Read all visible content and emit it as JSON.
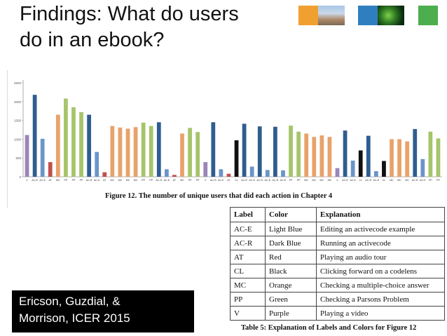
{
  "slide": {
    "title_line1": "Findings: What do users",
    "title_line2": "do in an ebook?",
    "citation_line1": "Ericson, Guzdial, &",
    "citation_line2": "Morrison, ICER 2015"
  },
  "figure": {
    "caption": "Figure 12.  The number of unique users that did each action in Chapter 4"
  },
  "table": {
    "headers": [
      "Label",
      "Color",
      "Explanation"
    ],
    "rows": [
      [
        "AC-E",
        "Light Blue",
        "Editing an activecode example"
      ],
      [
        "AC-R",
        "Dark Blue",
        "Running an activecode"
      ],
      [
        "AT",
        "Red",
        "Playing an audio tour"
      ],
      [
        "CL",
        "Black",
        "Clicking forward on a codelens"
      ],
      [
        "MC",
        "Orange",
        "Checking a multiple-choice answer"
      ],
      [
        "PP",
        "Green",
        "Checking a Parsons Problem"
      ],
      [
        "V",
        "Purple",
        "Playing a video"
      ]
    ],
    "caption": "Table 5: Explanation of Labels and Colors for Figure 12"
  },
  "colors": {
    "V": "#9a86b8",
    "AC-R": "#2f5d8f",
    "AC-E": "#6b95c9",
    "AT": "#c0504d",
    "MC": "#e8a26a",
    "PP": "#a6c46a",
    "CL": "#111111",
    "thumb_orange": "#f0a030",
    "thumb_blue": "#2f7fc0",
    "thumb_green": "#4cae4c"
  },
  "chart_data": {
    "type": "bar",
    "title": "",
    "xlabel": "",
    "ylabel": "",
    "ylim": [
      0,
      2500
    ],
    "yticks": [
      0,
      500,
      1000,
      1500,
      2000,
      2500
    ],
    "grid": false,
    "bars": [
      {
        "label": "V",
        "cat": "V",
        "value": 1110
      },
      {
        "label": "AC-R",
        "cat": "AC-R",
        "value": 2180
      },
      {
        "label": "AC-E",
        "cat": "AC-E",
        "value": 1010
      },
      {
        "label": "AT",
        "cat": "AT",
        "value": 390
      },
      {
        "label": "MC",
        "cat": "MC",
        "value": 1650
      },
      {
        "label": "PP",
        "cat": "PP",
        "value": 2080
      },
      {
        "label": "PP",
        "cat": "PP",
        "value": 1850
      },
      {
        "label": "PP",
        "cat": "PP",
        "value": 1720
      },
      {
        "label": "AC-R",
        "cat": "AC-R",
        "value": 1650
      },
      {
        "label": "AC-E",
        "cat": "AC-E",
        "value": 660
      },
      {
        "label": "AT",
        "cat": "AT",
        "value": 120
      },
      {
        "label": "MC",
        "cat": "MC",
        "value": 1350
      },
      {
        "label": "MC",
        "cat": "MC",
        "value": 1310
      },
      {
        "label": "MC",
        "cat": "MC",
        "value": 1280
      },
      {
        "label": "MC",
        "cat": "MC",
        "value": 1320
      },
      {
        "label": "PP",
        "cat": "PP",
        "value": 1440
      },
      {
        "label": "PP",
        "cat": "PP",
        "value": 1350
      },
      {
        "label": "AC-R",
        "cat": "AC-R",
        "value": 1450
      },
      {
        "label": "AC-E",
        "cat": "AC-E",
        "value": 200
      },
      {
        "label": "AT",
        "cat": "AT",
        "value": 50
      },
      {
        "label": "MC",
        "cat": "MC",
        "value": 1150
      },
      {
        "label": "PP",
        "cat": "PP",
        "value": 1300
      },
      {
        "label": "PP",
        "cat": "PP",
        "value": 1190
      },
      {
        "label": "V",
        "cat": "V",
        "value": 390
      },
      {
        "label": "AC-R",
        "cat": "AC-R",
        "value": 1450
      },
      {
        "label": "AC-E",
        "cat": "AC-E",
        "value": 200
      },
      {
        "label": "AT",
        "cat": "AT",
        "value": 80
      },
      {
        "label": "CL",
        "cat": "CL",
        "value": 970
      },
      {
        "label": "AC-R",
        "cat": "AC-R",
        "value": 1410
      },
      {
        "label": "AC-E",
        "cat": "AC-E",
        "value": 270
      },
      {
        "label": "AC-R",
        "cat": "AC-R",
        "value": 1340
      },
      {
        "label": "AC-E",
        "cat": "AC-E",
        "value": 180
      },
      {
        "label": "AC-R",
        "cat": "AC-R",
        "value": 1330
      },
      {
        "label": "AC-E",
        "cat": "AC-E",
        "value": 170
      },
      {
        "label": "PP",
        "cat": "PP",
        "value": 1360
      },
      {
        "label": "PP",
        "cat": "PP",
        "value": 1200
      },
      {
        "label": "MC",
        "cat": "MC",
        "value": 1150
      },
      {
        "label": "MC",
        "cat": "MC",
        "value": 1060
      },
      {
        "label": "MC",
        "cat": "MC",
        "value": 1100
      },
      {
        "label": "MC",
        "cat": "MC",
        "value": 1060
      },
      {
        "label": "V",
        "cat": "V",
        "value": 230
      },
      {
        "label": "AC-R",
        "cat": "AC-R",
        "value": 1230
      },
      {
        "label": "AC-E",
        "cat": "AC-E",
        "value": 430
      },
      {
        "label": "CL",
        "cat": "CL",
        "value": 700
      },
      {
        "label": "AC-R",
        "cat": "AC-R",
        "value": 1090
      },
      {
        "label": "AC-E",
        "cat": "AC-E",
        "value": 150
      },
      {
        "label": "CL",
        "cat": "CL",
        "value": 420
      },
      {
        "label": "MC",
        "cat": "MC",
        "value": 1000
      },
      {
        "label": "MC",
        "cat": "MC",
        "value": 1000
      },
      {
        "label": "MC",
        "cat": "MC",
        "value": 940
      },
      {
        "label": "AC-R",
        "cat": "AC-R",
        "value": 1270
      },
      {
        "label": "AC-E",
        "cat": "AC-E",
        "value": 470
      },
      {
        "label": "PP",
        "cat": "PP",
        "value": 1200
      },
      {
        "label": "PP",
        "cat": "PP",
        "value": 1020
      }
    ],
    "xtick_labels": [
      "V",
      "AC-R",
      "AC-E",
      "AT",
      "MC",
      "PP",
      "PP",
      "PP",
      "AC-R",
      "AC-E",
      "AT",
      "MC",
      "MC",
      "MC",
      "MC",
      "PP",
      "PP",
      "AC-R",
      "AC-E",
      "AT",
      "MC",
      "PP",
      "PP",
      "V",
      "AC-R",
      "AC-E",
      "AT",
      "CL",
      "AC-R",
      "AC-E",
      "AC-R",
      "AC-E",
      "AC-R",
      "AC-E",
      "PP",
      "PP",
      "MC",
      "MC",
      "MC",
      "MC",
      "V",
      "AC-R",
      "AC-E",
      "CL",
      "AC-R",
      "AC-E",
      "CL",
      "MC",
      "MC",
      "MC",
      "AC-R",
      "AC-E",
      "PP",
      "PP"
    ]
  }
}
